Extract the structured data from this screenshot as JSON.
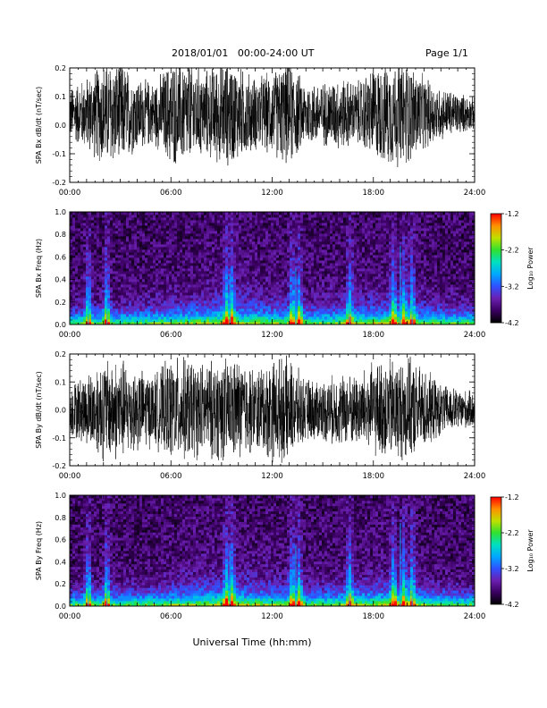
{
  "header": {
    "title": "2018/01/01   00:00-24:00 UT",
    "page": "Page 1/1"
  },
  "chart_data": [
    {
      "type": "line",
      "name": "bx-waveform",
      "ylabel": "SPA Bx dB/dt (nT/sec)",
      "ylim": [
        -0.2,
        0.2
      ],
      "yticks": [
        "0.2",
        "0.1",
        "0.0",
        "-0.1",
        "-0.2"
      ],
      "xlim": [
        "00:00",
        "24:00"
      ],
      "xticks": [
        "00:00",
        "06:00",
        "12:00",
        "18:00",
        "24:00"
      ],
      "envelope_hours": [
        0,
        1,
        2,
        3,
        4,
        5,
        6,
        7,
        8,
        9,
        9.5,
        10,
        11,
        12,
        13,
        14,
        15,
        16,
        17,
        18,
        19,
        20,
        21,
        22,
        23,
        24
      ],
      "envelope_amplitude": [
        0.1,
        0.14,
        0.2,
        0.2,
        0.14,
        0.12,
        0.2,
        0.2,
        0.16,
        0.2,
        0.2,
        0.18,
        0.14,
        0.16,
        0.2,
        0.12,
        0.12,
        0.14,
        0.12,
        0.18,
        0.2,
        0.2,
        0.14,
        0.1,
        0.08,
        0.06
      ],
      "baseline": 0.04,
      "color": "#000000"
    },
    {
      "type": "heatmap",
      "name": "bx-spectrogram",
      "ylabel": "SPA Bx Freq (Hz)",
      "ylim": [
        0.0,
        1.0
      ],
      "yticks": [
        "1.0",
        "0.8",
        "0.6",
        "0.4",
        "0.2",
        "0.0"
      ],
      "xlim": [
        "00:00",
        "24:00"
      ],
      "xticks": [
        "00:00",
        "06:00",
        "12:00",
        "18:00",
        "24:00"
      ],
      "colorbar_label": "Log₁₀ Power",
      "colorbar_range": [
        -4.2,
        -1.2
      ],
      "colorbar_ticks": [
        "-1.2",
        "-2.2",
        "-3.2",
        "-4.2"
      ],
      "colormap": [
        "#000000",
        "#3a0060",
        "#6a1fb0",
        "#3050ff",
        "#00a8ff",
        "#00e0c0",
        "#30e030",
        "#c0e000",
        "#ff9000",
        "#ff0000"
      ],
      "bright_band_hours": [
        1.1,
        2.2,
        9.3,
        9.6,
        13.2,
        13.6,
        16.6,
        19.2,
        19.8,
        20.3
      ],
      "events": [
        {
          "hour": 1.1,
          "frequency": 0.25
        },
        {
          "hour": 2.2,
          "frequency": 0.35
        },
        {
          "hour": 9.5,
          "frequency": 0.45
        },
        {
          "hour": 13.4,
          "frequency": 0.5
        },
        {
          "hour": 16.6,
          "frequency": 0.3
        },
        {
          "hour": 19.6,
          "frequency": 0.7
        },
        {
          "hour": 20.3,
          "frequency": 0.35
        }
      ]
    },
    {
      "type": "line",
      "name": "by-waveform",
      "ylabel": "SPA By dB/dt (nT/sec)",
      "ylim": [
        -0.2,
        0.2
      ],
      "yticks": [
        "0.2",
        "0.1",
        "0.0",
        "-0.1",
        "-0.2"
      ],
      "xlim": [
        "00:00",
        "24:00"
      ],
      "xticks": [
        "00:00",
        "06:00",
        "12:00",
        "18:00",
        "24:00"
      ],
      "envelope_hours": [
        0,
        1,
        2,
        3,
        4,
        5,
        6,
        7,
        8,
        9,
        9.5,
        10,
        11,
        12,
        13,
        14,
        15,
        16,
        17,
        18,
        19,
        20,
        21,
        22,
        23,
        24
      ],
      "envelope_amplitude": [
        0.1,
        0.14,
        0.2,
        0.2,
        0.16,
        0.14,
        0.2,
        0.2,
        0.18,
        0.2,
        0.2,
        0.2,
        0.16,
        0.2,
        0.2,
        0.12,
        0.12,
        0.14,
        0.14,
        0.18,
        0.2,
        0.2,
        0.16,
        0.1,
        0.08,
        0.07
      ],
      "baseline": 0.0,
      "color": "#000000"
    },
    {
      "type": "heatmap",
      "name": "by-spectrogram",
      "ylabel": "SPA By Freq (Hz)",
      "ylim": [
        0.0,
        1.0
      ],
      "yticks": [
        "1.0",
        "0.8",
        "0.6",
        "0.4",
        "0.2",
        "0.0"
      ],
      "xlim": [
        "00:00",
        "24:00"
      ],
      "xticks": [
        "00:00",
        "06:00",
        "12:00",
        "18:00",
        "24:00"
      ],
      "colorbar_label": "Log₁₀ Power",
      "colorbar_range": [
        -4.2,
        -1.2
      ],
      "colorbar_ticks": [
        "-1.2",
        "-2.2",
        "-3.2",
        "-4.2"
      ],
      "colormap": [
        "#000000",
        "#3a0060",
        "#6a1fb0",
        "#3050ff",
        "#00a8ff",
        "#00e0c0",
        "#30e030",
        "#c0e000",
        "#ff9000",
        "#ff0000"
      ],
      "bright_band_hours": [
        1.1,
        2.2,
        9.3,
        9.6,
        13.2,
        13.6,
        16.6,
        19.2,
        19.8,
        20.3
      ],
      "events": [
        {
          "hour": 1.1,
          "frequency": 0.25
        },
        {
          "hour": 2.2,
          "frequency": 0.35
        },
        {
          "hour": 9.5,
          "frequency": 0.5
        },
        {
          "hour": 13.4,
          "frequency": 0.55
        },
        {
          "hour": 16.6,
          "frequency": 0.3
        },
        {
          "hour": 19.6,
          "frequency": 0.75
        },
        {
          "hour": 20.3,
          "frequency": 0.35
        }
      ]
    }
  ],
  "xlabel": "Universal Time (hh:mm)"
}
